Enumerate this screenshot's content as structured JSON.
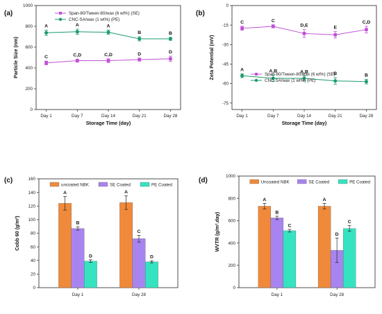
{
  "chart_data": [
    {
      "panel": "(a)",
      "type": "line",
      "categories": [
        "Day 1",
        "Day 7",
        "Day 14",
        "Day 21",
        "Day 28"
      ],
      "xlabel": "Storage Time (day)",
      "ylabel": "Particle Size (nm)",
      "ylim": [
        0,
        1000
      ],
      "yticks": [
        "0",
        "200",
        "400",
        "600",
        "800",
        "1000"
      ],
      "grid": false,
      "legend_position": "top-center",
      "series": [
        {
          "name": "Span-80/Tween-80/wax (6 wt%) (SE)",
          "color": "#c04fd6",
          "marker": "square",
          "values": [
            448,
            470,
            470,
            480,
            488
          ],
          "errors": [
            18,
            15,
            18,
            15,
            25
          ],
          "labels": [
            "C",
            "C,D",
            "C,D",
            "D",
            "D"
          ]
        },
        {
          "name": "CNC-SA/wax (1 wt%) (PE)",
          "color": "#1a9a6a",
          "marker": "circle",
          "values": [
            738,
            748,
            743,
            680,
            680
          ],
          "errors": [
            25,
            25,
            20,
            20,
            15
          ],
          "labels": [
            "A",
            "A",
            "A",
            "B",
            "B"
          ]
        }
      ]
    },
    {
      "panel": "(b)",
      "type": "line",
      "categories": [
        "Day 1",
        "Day 7",
        "Day 14",
        "Day 21",
        "Day 28"
      ],
      "xlabel": "Storage Time (day)",
      "ylabel": "Zeta Potential (mV)",
      "ylim": [
        -80,
        0
      ],
      "yticks": [
        "0",
        "-15",
        "-30",
        "-45",
        "-60",
        "-75"
      ],
      "grid": false,
      "legend_position": "bottom-center",
      "series": [
        {
          "name": "Span-80/Tween-80/wax (6 wt%) (SE)",
          "color": "#c04fd6",
          "marker": "square",
          "values": [
            -17.5,
            -16,
            -21.5,
            -22.5,
            -18.5
          ],
          "errors": [
            1.5,
            1.2,
            3,
            2.5,
            2.5
          ],
          "labels": [
            "C",
            "C",
            "D,E",
            "E",
            "C,D"
          ]
        },
        {
          "name": "CNC-SA/wax (1 wt%) (PE)",
          "color": "#1a9a6a",
          "marker": "circle",
          "values": [
            -54,
            -56,
            -56,
            -58,
            -58.5
          ],
          "errors": [
            1.5,
            2.5,
            2,
            2.5,
            1.8
          ],
          "labels": [
            "A",
            "A,B",
            "A,B",
            "B",
            "B"
          ]
        }
      ]
    },
    {
      "panel": "(c)",
      "type": "bar",
      "categories": [
        "Day 1",
        "Day 28"
      ],
      "xlabel": "",
      "ylabel": "Cobb 60 (g/m²)",
      "ylim": [
        0,
        160
      ],
      "yticks": [
        "0",
        "20",
        "40",
        "60",
        "80",
        "100",
        "120",
        "140",
        "160"
      ],
      "grid": false,
      "legend_position": "top",
      "series": [
        {
          "name": "uncoated  NBK",
          "color": "#f08a3a",
          "values": [
            124,
            125
          ],
          "errors": [
            10,
            10
          ],
          "labels": [
            "A",
            "A"
          ]
        },
        {
          "name": "SE Coated",
          "color": "#a884f0",
          "values": [
            87,
            72
          ],
          "errors": [
            2.5,
            5
          ],
          "labels": [
            "B",
            "C"
          ]
        },
        {
          "name": "PE Coated",
          "color": "#35e3c0",
          "values": [
            39,
            38
          ],
          "errors": [
            2,
            1.5
          ],
          "labels": [
            "D",
            "D"
          ]
        }
      ]
    },
    {
      "panel": "(d)",
      "type": "bar",
      "categories": [
        "Day 1",
        "Day 28"
      ],
      "xlabel": "",
      "ylabel": "WVTR (g/m².day)",
      "ylim": [
        0,
        1000
      ],
      "yticks": [
        "0",
        "200",
        "400",
        "600",
        "800",
        "1000"
      ],
      "grid": false,
      "legend_position": "top",
      "series": [
        {
          "name": "Uncoated NBK",
          "color": "#f08a3a",
          "values": [
            730,
            730
          ],
          "errors": [
            25,
            25
          ],
          "labels": [
            "A",
            "A"
          ]
        },
        {
          "name": "SE Coated",
          "color": "#a884f0",
          "values": [
            625,
            335
          ],
          "errors": [
            15,
            110
          ],
          "labels": [
            "B",
            "D"
          ]
        },
        {
          "name": "PE Coated",
          "color": "#35e3c0",
          "values": [
            510,
            530
          ],
          "errors": [
            12,
            25
          ],
          "labels": [
            "C",
            "C"
          ]
        }
      ]
    }
  ]
}
